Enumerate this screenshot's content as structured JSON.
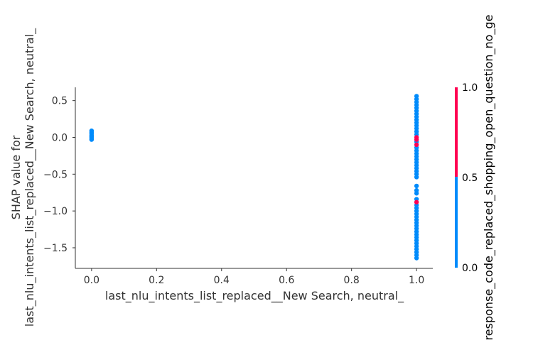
{
  "chart_data": {
    "type": "scatter",
    "title": "",
    "xlabel": "last_nlu_intents_list_replaced__New Search, neutral_",
    "ylabel_lines": [
      "SHAP value for",
      "last_nlu_intents_list_replaced__New Search, neutral_"
    ],
    "xlim": [
      -0.05,
      1.05
    ],
    "ylim": [
      -1.78,
      0.68
    ],
    "xticks": [
      "0.0",
      "0.2",
      "0.4",
      "0.6",
      "0.8",
      "1.0"
    ],
    "xtick_values": [
      0.0,
      0.2,
      0.4,
      0.6,
      0.8,
      1.0
    ],
    "yticks": [
      "0.5",
      "0.0",
      "−0.5",
      "−1.0",
      "−1.5"
    ],
    "ytick_values": [
      0.5,
      0.0,
      -0.5,
      -1.0,
      -1.5
    ],
    "grid": false,
    "colors": {
      "low": "#008bfb",
      "high": "#ff0052"
    },
    "points": [
      {
        "x": 0.0,
        "y": 0.09,
        "c": 0
      },
      {
        "x": 0.0,
        "y": 0.07,
        "c": 0
      },
      {
        "x": 0.0,
        "y": 0.05,
        "c": 0
      },
      {
        "x": 0.0,
        "y": 0.03,
        "c": 0
      },
      {
        "x": 0.0,
        "y": 0.01,
        "c": 0
      },
      {
        "x": 0.0,
        "y": -0.01,
        "c": 0
      },
      {
        "x": 0.0,
        "y": -0.03,
        "c": 0
      },
      {
        "x": 1.0,
        "y": 0.56,
        "c": 0
      },
      {
        "x": 1.0,
        "y": 0.52,
        "c": 0
      },
      {
        "x": 1.0,
        "y": 0.48,
        "c": 0
      },
      {
        "x": 1.0,
        "y": 0.44,
        "c": 0
      },
      {
        "x": 1.0,
        "y": 0.4,
        "c": 0
      },
      {
        "x": 1.0,
        "y": 0.36,
        "c": 0
      },
      {
        "x": 1.0,
        "y": 0.32,
        "c": 0
      },
      {
        "x": 1.0,
        "y": 0.28,
        "c": 0
      },
      {
        "x": 1.0,
        "y": 0.24,
        "c": 0
      },
      {
        "x": 1.0,
        "y": 0.2,
        "c": 0
      },
      {
        "x": 1.0,
        "y": 0.16,
        "c": 0
      },
      {
        "x": 1.0,
        "y": 0.12,
        "c": 0
      },
      {
        "x": 1.0,
        "y": 0.08,
        "c": 0
      },
      {
        "x": 1.0,
        "y": 0.04,
        "c": 0
      },
      {
        "x": 1.0,
        "y": 0.0,
        "c": 1
      },
      {
        "x": 1.0,
        "y": -0.03,
        "c": 1
      },
      {
        "x": 1.0,
        "y": -0.06,
        "c": 0
      },
      {
        "x": 1.0,
        "y": -0.1,
        "c": 1
      },
      {
        "x": 1.0,
        "y": -0.14,
        "c": 0
      },
      {
        "x": 1.0,
        "y": -0.18,
        "c": 0
      },
      {
        "x": 1.0,
        "y": -0.22,
        "c": 0
      },
      {
        "x": 1.0,
        "y": -0.26,
        "c": 0
      },
      {
        "x": 1.0,
        "y": -0.3,
        "c": 0
      },
      {
        "x": 1.0,
        "y": -0.34,
        "c": 0
      },
      {
        "x": 1.0,
        "y": -0.38,
        "c": 0
      },
      {
        "x": 1.0,
        "y": -0.42,
        "c": 0
      },
      {
        "x": 1.0,
        "y": -0.46,
        "c": 0
      },
      {
        "x": 1.0,
        "y": -0.5,
        "c": 0
      },
      {
        "x": 1.0,
        "y": -0.54,
        "c": 0
      },
      {
        "x": 1.0,
        "y": -0.66,
        "c": 0
      },
      {
        "x": 1.0,
        "y": -0.72,
        "c": 0
      },
      {
        "x": 1.0,
        "y": -0.76,
        "c": 0
      },
      {
        "x": 1.0,
        "y": -0.84,
        "c": 0
      },
      {
        "x": 1.0,
        "y": -0.88,
        "c": 1
      },
      {
        "x": 1.0,
        "y": -0.92,
        "c": 0
      },
      {
        "x": 1.0,
        "y": -0.96,
        "c": 0
      },
      {
        "x": 1.0,
        "y": -1.0,
        "c": 0
      },
      {
        "x": 1.0,
        "y": -1.04,
        "c": 0
      },
      {
        "x": 1.0,
        "y": -1.08,
        "c": 0
      },
      {
        "x": 1.0,
        "y": -1.12,
        "c": 0
      },
      {
        "x": 1.0,
        "y": -1.16,
        "c": 0
      },
      {
        "x": 1.0,
        "y": -1.2,
        "c": 0
      },
      {
        "x": 1.0,
        "y": -1.24,
        "c": 0
      },
      {
        "x": 1.0,
        "y": -1.28,
        "c": 0
      },
      {
        "x": 1.0,
        "y": -1.32,
        "c": 0
      },
      {
        "x": 1.0,
        "y": -1.36,
        "c": 0
      },
      {
        "x": 1.0,
        "y": -1.4,
        "c": 0
      },
      {
        "x": 1.0,
        "y": -1.44,
        "c": 0
      },
      {
        "x": 1.0,
        "y": -1.48,
        "c": 0
      },
      {
        "x": 1.0,
        "y": -1.52,
        "c": 0
      },
      {
        "x": 1.0,
        "y": -1.56,
        "c": 0
      },
      {
        "x": 1.0,
        "y": -1.6,
        "c": 0
      },
      {
        "x": 1.0,
        "y": -1.64,
        "c": 0
      }
    ],
    "colorbar": {
      "label": "response_code_replaced_shopping_open_question_no_ge",
      "ticks": [
        "0.0",
        "0.5",
        "1.0"
      ],
      "tick_values": [
        0.0,
        0.5,
        1.0
      ]
    }
  }
}
